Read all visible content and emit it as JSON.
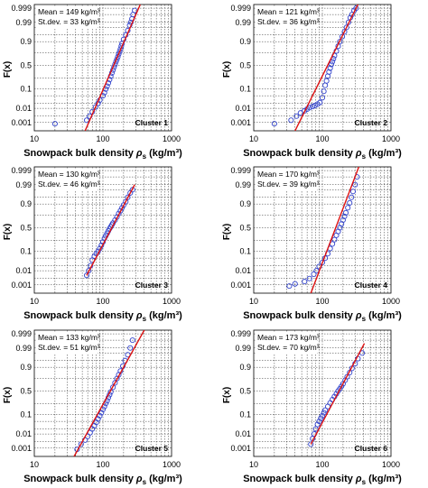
{
  "chart_data": [
    {
      "type": "scatter",
      "cluster_label": "Cluster 1",
      "stats": [
        "Mean = 149 kg/m³",
        "St.dev. = 33 kg/m³"
      ],
      "mean": 149,
      "stdev": 33,
      "ylabel": "F(x)",
      "xlabel": "Snowpack bulk density ρs (kg/m³)",
      "xscale": "log",
      "xlim": [
        10,
        1000
      ],
      "yscale": "probit",
      "ylim": [
        0.0002,
        0.9995
      ],
      "xticks": [
        "10",
        "100",
        "1000"
      ],
      "yticks": [
        "0.001",
        "0.01",
        "0.1",
        "0.5",
        "0.9",
        "0.99",
        "0.999"
      ],
      "fit_line": {
        "x": [
          55,
          350
        ],
        "F": [
          0.0002,
          0.9995
        ]
      },
      "points": {
        "x": [
          20,
          58,
          64,
          70,
          78,
          85,
          90,
          100,
          105,
          110,
          115,
          120,
          125,
          130,
          135,
          140,
          145,
          150,
          155,
          160,
          165,
          170,
          175,
          180,
          185,
          190,
          200,
          215,
          230,
          245,
          255,
          265,
          275,
          290
        ],
        "F": [
          0.0008,
          0.0015,
          0.003,
          0.006,
          0.012,
          0.02,
          0.03,
          0.05,
          0.07,
          0.1,
          0.13,
          0.17,
          0.22,
          0.28,
          0.34,
          0.4,
          0.46,
          0.52,
          0.58,
          0.63,
          0.68,
          0.73,
          0.77,
          0.81,
          0.85,
          0.88,
          0.92,
          0.95,
          0.97,
          0.985,
          0.99,
          0.994,
          0.997,
          0.9985
        ]
      }
    },
    {
      "type": "scatter",
      "cluster_label": "Cluster 2",
      "stats": [
        "Mean = 121 kg/m³",
        "St.dev. = 36 kg/m³"
      ],
      "mean": 121,
      "stdev": 36,
      "ylabel": "F(x)",
      "xlabel": "Snowpack bulk density ρs (kg/m³)",
      "xscale": "log",
      "xlim": [
        10,
        1000
      ],
      "yscale": "probit",
      "ylim": [
        0.0002,
        0.9995
      ],
      "xticks": [
        "10",
        "100",
        "1000"
      ],
      "yticks": [
        "0.001",
        "0.01",
        "0.1",
        "0.5",
        "0.9",
        "0.99",
        "0.999"
      ],
      "fit_line": {
        "x": [
          40,
          330
        ],
        "F": [
          0.0002,
          0.9995
        ]
      },
      "points": {
        "x": [
          20,
          35,
          42,
          48,
          55,
          60,
          65,
          72,
          78,
          85,
          92,
          100,
          105,
          110,
          115,
          120,
          125,
          130,
          135,
          140,
          145,
          150,
          160,
          170,
          180,
          195,
          210,
          225,
          240,
          255,
          270,
          290,
          310
        ],
        "F": [
          0.0008,
          0.0015,
          0.003,
          0.005,
          0.007,
          0.009,
          0.011,
          0.013,
          0.015,
          0.018,
          0.022,
          0.04,
          0.08,
          0.14,
          0.2,
          0.28,
          0.36,
          0.44,
          0.52,
          0.58,
          0.64,
          0.7,
          0.78,
          0.85,
          0.9,
          0.94,
          0.965,
          0.98,
          0.99,
          0.995,
          0.997,
          0.9985,
          0.999
        ]
      }
    },
    {
      "type": "scatter",
      "cluster_label": "Cluster 3",
      "stats": [
        "Mean = 130 kg/m³",
        "St.dev. = 46 kg/m³"
      ],
      "mean": 130,
      "stdev": 46,
      "ylabel": "F(x)",
      "xlabel": "Snowpack bulk density ρs (kg/m³)",
      "xscale": "log",
      "xlim": [
        10,
        1000
      ],
      "yscale": "probit",
      "ylim": [
        0.0002,
        0.9995
      ],
      "xticks": [
        "10",
        "100",
        "1000"
      ],
      "yticks": [
        "0.001",
        "0.01",
        "0.1",
        "0.5",
        "0.9",
        "0.99",
        "0.999"
      ],
      "fit_line": {
        "x": [
          58,
          290
        ],
        "F": [
          0.005,
          0.99
        ]
      },
      "points": {
        "x": [
          58,
          62,
          66,
          70,
          75,
          80,
          85,
          90,
          95,
          100,
          105,
          110,
          115,
          120,
          125,
          130,
          135,
          140,
          150,
          160,
          170,
          180,
          190,
          200,
          215,
          230,
          250,
          270
        ],
        "F": [
          0.005,
          0.01,
          0.02,
          0.04,
          0.06,
          0.08,
          0.1,
          0.13,
          0.17,
          0.22,
          0.28,
          0.33,
          0.38,
          0.43,
          0.48,
          0.52,
          0.56,
          0.6,
          0.66,
          0.72,
          0.78,
          0.82,
          0.86,
          0.89,
          0.92,
          0.95,
          0.97,
          0.98
        ]
      }
    },
    {
      "type": "scatter",
      "cluster_label": "Cluster 4",
      "stats": [
        "Mean = 170 kg/m³",
        "St.dev. = 39 kg/m³"
      ],
      "mean": 170,
      "stdev": 39,
      "ylabel": "F(x)",
      "xlabel": "Snowpack bulk density ρs (kg/m³)",
      "xscale": "log",
      "xlim": [
        10,
        1000
      ],
      "yscale": "probit",
      "ylim": [
        0.0002,
        0.9995
      ],
      "xticks": [
        "10",
        "100",
        "1000"
      ],
      "yticks": [
        "0.001",
        "0.01",
        "0.1",
        "0.5",
        "0.9",
        "0.99",
        "0.999"
      ],
      "fit_line": {
        "x": [
          68,
          340
        ],
        "F": [
          0.0002,
          0.9995
        ]
      },
      "points": {
        "x": [
          33,
          40,
          55,
          65,
          75,
          82,
          90,
          100,
          110,
          120,
          130,
          140,
          150,
          160,
          170,
          180,
          190,
          200,
          210,
          220,
          235,
          250,
          265,
          280,
          300,
          320
        ],
        "F": [
          0.0008,
          0.0012,
          0.0018,
          0.003,
          0.006,
          0.01,
          0.018,
          0.03,
          0.05,
          0.08,
          0.13,
          0.19,
          0.26,
          0.34,
          0.42,
          0.5,
          0.58,
          0.66,
          0.73,
          0.79,
          0.86,
          0.91,
          0.95,
          0.975,
          0.99,
          0.997
        ]
      }
    },
    {
      "type": "scatter",
      "cluster_label": "Cluster 5",
      "stats": [
        "Mean = 133 kg/m³",
        "St.dev. = 51 kg/m³"
      ],
      "mean": 133,
      "stdev": 51,
      "ylabel": "F(x)",
      "xlabel": "Snowpack bulk density ρs (kg/m³)",
      "xscale": "log",
      "xlim": [
        10,
        1000
      ],
      "yscale": "probit",
      "ylim": [
        0.0002,
        0.9995
      ],
      "xticks": [
        "10",
        "100",
        "1000"
      ],
      "yticks": [
        "0.001",
        "0.01",
        "0.1",
        "0.5",
        "0.9",
        "0.99",
        "0.999"
      ],
      "fit_line": {
        "x": [
          38,
          400
        ],
        "F": [
          0.0002,
          0.9995
        ]
      },
      "points": {
        "x": [
          42,
          48,
          55,
          60,
          65,
          70,
          75,
          80,
          85,
          90,
          95,
          100,
          105,
          110,
          115,
          120,
          125,
          130,
          140,
          150,
          160,
          170,
          180,
          195,
          210,
          230,
          250,
          270
        ],
        "F": [
          0.0008,
          0.002,
          0.004,
          0.007,
          0.012,
          0.02,
          0.03,
          0.045,
          0.065,
          0.09,
          0.12,
          0.16,
          0.2,
          0.25,
          0.3,
          0.36,
          0.42,
          0.48,
          0.58,
          0.67,
          0.75,
          0.81,
          0.86,
          0.91,
          0.95,
          0.975,
          0.99,
          0.997
        ]
      }
    },
    {
      "type": "scatter",
      "cluster_label": "Cluster 6",
      "stats": [
        "Mean = 173 kg/m³",
        "St.dev. = 70 kg/m³"
      ],
      "mean": 173,
      "stdev": 70,
      "ylabel": "F(x)",
      "xlabel": "Snowpack bulk density ρs (kg/m³)",
      "xscale": "log",
      "xlim": [
        10,
        1000
      ],
      "yscale": "probit",
      "ylim": [
        0.0002,
        0.9995
      ],
      "xticks": [
        "10",
        "100",
        "1000"
      ],
      "yticks": [
        "0.001",
        "0.01",
        "0.1",
        "0.5",
        "0.9",
        "0.99",
        "0.999"
      ],
      "fit_line": {
        "x": [
          68,
          410
        ],
        "F": [
          0.002,
          0.995
        ]
      },
      "points": {
        "x": [
          68,
          72,
          76,
          80,
          85,
          90,
          95,
          100,
          105,
          110,
          120,
          130,
          140,
          150,
          160,
          170,
          180,
          190,
          200,
          215,
          230,
          250,
          270,
          300,
          330,
          380
        ],
        "F": [
          0.002,
          0.005,
          0.01,
          0.02,
          0.035,
          0.05,
          0.07,
          0.09,
          0.12,
          0.15,
          0.2,
          0.26,
          0.32,
          0.38,
          0.44,
          0.5,
          0.55,
          0.6,
          0.65,
          0.72,
          0.78,
          0.84,
          0.89,
          0.93,
          0.96,
          0.98
        ]
      }
    }
  ],
  "colors": {
    "points": "#3344cc",
    "fit_line": "#dd1111",
    "axes": "#000000",
    "grid": "#333333"
  }
}
